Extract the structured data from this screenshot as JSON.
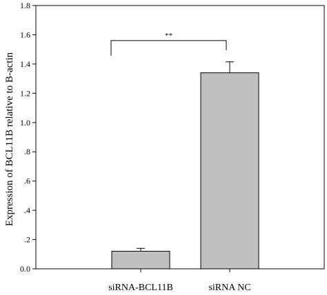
{
  "chart_data": {
    "type": "bar",
    "categories": [
      "siRNA-BCL11B",
      "siRNA NC"
    ],
    "values": [
      0.12,
      1.34
    ],
    "error": [
      0.02,
      0.075
    ],
    "title": "",
    "xlabel": "",
    "ylabel": "Expression of BCL11B relative to B-actin",
    "ylim": [
      0,
      1.8
    ],
    "yticks": [
      {
        "value": 0.0,
        "label": "0.0"
      },
      {
        "value": 0.2,
        "label": ".2"
      },
      {
        "value": 0.4,
        "label": ".4"
      },
      {
        "value": 0.6,
        "label": ".6"
      },
      {
        "value": 0.8,
        "label": ".8"
      },
      {
        "value": 1.0,
        "label": "1.0"
      },
      {
        "value": 1.2,
        "label": "1.2"
      },
      {
        "value": 1.4,
        "label": "1.4"
      },
      {
        "value": 1.6,
        "label": "1.6"
      },
      {
        "value": 1.8,
        "label": "1.8"
      }
    ],
    "significance": {
      "label": "**",
      "between": [
        0,
        1
      ],
      "level": 1.56
    },
    "bar_color": "#c0c0c0",
    "grid": false
  }
}
